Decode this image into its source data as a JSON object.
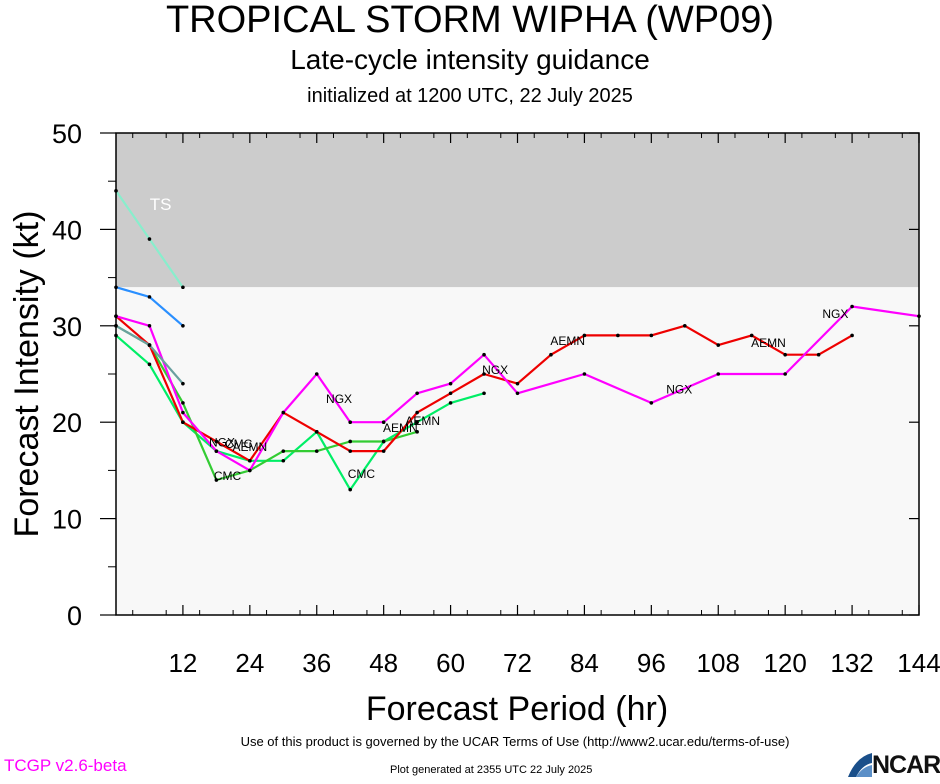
{
  "header": {
    "title": "TROPICAL STORM WIPHA (WP09)",
    "subtitle": "Late-cycle intensity guidance",
    "initialized": "initialized at 1200 UTC, 22 July 2025"
  },
  "footer": {
    "terms": "Use of this product is governed by the UCAR Terms of Use (http://www2.ucar.edu/terms-of-use)",
    "version": "TCGP v2.6-beta",
    "generated": "Plot generated at 2355 UTC   22 July 2025",
    "logo_text": "NCAR"
  },
  "chart_data": {
    "type": "line",
    "xlabel": "Forecast Period (hr)",
    "ylabel": "Forecast Intensity (kt)",
    "xlim": [
      0,
      144
    ],
    "ylim": [
      0,
      50
    ],
    "xticks": [
      12,
      24,
      36,
      48,
      60,
      72,
      84,
      96,
      108,
      120,
      132,
      144
    ],
    "yticks": [
      0,
      10,
      20,
      30,
      40,
      50
    ],
    "bands": [
      {
        "label": "TS",
        "from": 34,
        "to": 50,
        "color": "#cccccc"
      },
      {
        "label": "",
        "from": 0,
        "to": 34,
        "color": "#f8f8f8"
      }
    ],
    "series": [
      {
        "color": "#00ee66",
        "points": [
          [
            0,
            29
          ],
          [
            6,
            26
          ],
          [
            12,
            20
          ],
          [
            18,
            17
          ],
          [
            24,
            16
          ],
          [
            30,
            16
          ],
          [
            36,
            19
          ],
          [
            42,
            13
          ],
          [
            48,
            18
          ],
          [
            54,
            20
          ],
          [
            60,
            22
          ],
          [
            66,
            23
          ]
        ]
      },
      {
        "color": "#33cc33",
        "points": [
          [
            0,
            30
          ],
          [
            6,
            28
          ],
          [
            12,
            22
          ],
          [
            18,
            14
          ],
          [
            24,
            15
          ],
          [
            30,
            17
          ],
          [
            36,
            17
          ],
          [
            42,
            18
          ],
          [
            48,
            18
          ],
          [
            54,
            19
          ]
        ]
      },
      {
        "color": "#ee0000",
        "points": [
          [
            0,
            31
          ],
          [
            6,
            28
          ],
          [
            12,
            20
          ],
          [
            18,
            18
          ],
          [
            24,
            16
          ],
          [
            30,
            21
          ],
          [
            36,
            19
          ],
          [
            42,
            17
          ],
          [
            48,
            17
          ],
          [
            54,
            21
          ],
          [
            60,
            23
          ],
          [
            66,
            25
          ],
          [
            72,
            24
          ],
          [
            78,
            27
          ],
          [
            84,
            29
          ],
          [
            90,
            29
          ],
          [
            96,
            29
          ],
          [
            102,
            30
          ],
          [
            108,
            28
          ],
          [
            114,
            29
          ],
          [
            120,
            27
          ],
          [
            126,
            27
          ],
          [
            132,
            29
          ]
        ]
      },
      {
        "color": "#ff00ff",
        "points": [
          [
            0,
            31
          ],
          [
            6,
            30
          ],
          [
            12,
            21
          ],
          [
            18,
            17
          ],
          [
            24,
            15
          ],
          [
            30,
            21
          ],
          [
            36,
            25
          ],
          [
            42,
            20
          ],
          [
            48,
            20
          ],
          [
            54,
            23
          ],
          [
            60,
            24
          ],
          [
            66,
            27
          ],
          [
            72,
            23
          ],
          [
            84,
            25
          ],
          [
            96,
            22
          ],
          [
            108,
            25
          ],
          [
            120,
            25
          ],
          [
            132,
            32
          ],
          [
            144,
            31
          ]
        ]
      },
      {
        "color": "#6aa0a0",
        "points": [
          [
            0,
            30
          ],
          [
            6,
            28
          ],
          [
            12,
            24
          ]
        ]
      },
      {
        "color": "#2a8fff",
        "points": [
          [
            0,
            34
          ],
          [
            6,
            33
          ],
          [
            12,
            30
          ]
        ]
      },
      {
        "color": "#88eecc",
        "points": [
          [
            0,
            44
          ],
          [
            6,
            39
          ],
          [
            12,
            34
          ]
        ]
      }
    ],
    "annotations": [
      {
        "text": "TS",
        "x": 8,
        "y": 42,
        "color": "#ffffff"
      },
      {
        "text": "CMC",
        "x": 20,
        "y": 14
      },
      {
        "text": "NGX",
        "x": 19,
        "y": 17.5
      },
      {
        "text": "CMC",
        "x": 22,
        "y": 17.3
      },
      {
        "text": "AEMN",
        "x": 24,
        "y": 17
      },
      {
        "text": "NGX",
        "x": 40,
        "y": 22
      },
      {
        "text": "CMC",
        "x": 44,
        "y": 14.2
      },
      {
        "text": "AEMN",
        "x": 51,
        "y": 19
      },
      {
        "text": "AEMN",
        "x": 55,
        "y": 19.7
      },
      {
        "text": "NGX",
        "x": 68,
        "y": 25
      },
      {
        "text": "AEMN",
        "x": 81,
        "y": 28
      },
      {
        "text": "NGX",
        "x": 101,
        "y": 23
      },
      {
        "text": "AEMN",
        "x": 117,
        "y": 27.8
      },
      {
        "text": "NGX",
        "x": 129,
        "y": 30.8
      }
    ]
  }
}
